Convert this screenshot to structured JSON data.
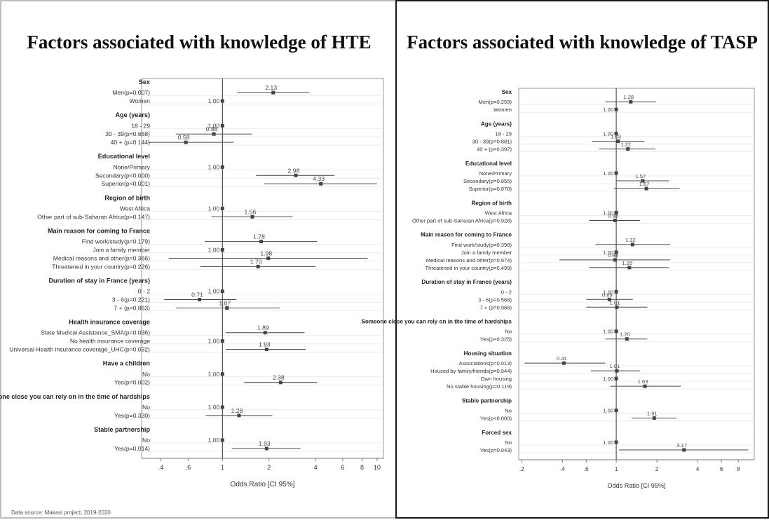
{
  "source_note": "Data source: Makasi project, 2019-2020",
  "chart_data": [
    {
      "type": "forest",
      "title": "Factors associated with knowledge of HTE",
      "xlabel": "Odds Ratio [CI 95%]",
      "x_scale": "log",
      "xlim": [
        0.3,
        11
      ],
      "xticks": [
        ".4",
        ".6",
        "1",
        "2",
        "4",
        "6",
        "8",
        "10"
      ],
      "xtick_values": [
        0.4,
        0.6,
        1,
        2,
        4,
        6,
        8,
        10
      ],
      "reference_line": 1,
      "groups": [
        {
          "label": "Sex",
          "rows": [
            {
              "label": "Men(p=0.007)",
              "or": 2.13,
              "or_label": "2.13",
              "ci": [
                1.25,
                3.65
              ]
            },
            {
              "label": "Women",
              "or": 1.0,
              "or_label": "1.00",
              "ci": null
            }
          ]
        },
        {
          "label": "Age (years)",
          "rows": [
            {
              "label": "18 - 29",
              "or": 1.0,
              "or_label": "1.00",
              "ci": null
            },
            {
              "label": "30 - 39(p=0.668)",
              "or": 0.88,
              "or_label": "0.88",
              "ci": [
                0.5,
                1.55
              ]
            },
            {
              "label": "40  + (p=0.144)",
              "or": 0.58,
              "or_label": "0.58",
              "ci": [
                0.33,
                1.18
              ]
            }
          ]
        },
        {
          "label": "Educational level",
          "rows": [
            {
              "label": "None/Primary",
              "or": 1.0,
              "or_label": "1.00",
              "ci": null
            },
            {
              "label": "Secondary(p<0.000)",
              "or": 2.98,
              "or_label": "2.98",
              "ci": [
                1.65,
                5.3
              ]
            },
            {
              "label": "Superior(p<0.001)",
              "or": 4.33,
              "or_label": "4.33",
              "ci": [
                1.85,
                10.0
              ]
            }
          ]
        },
        {
          "label": "Region of birth",
          "rows": [
            {
              "label": "West Africa",
              "or": 1.0,
              "or_label": "1.00",
              "ci": null
            },
            {
              "label": "Other part of sub-Saharan Africa(p=0.147)",
              "or": 1.56,
              "or_label": "1.56",
              "ci": [
                0.85,
                2.85
              ]
            }
          ]
        },
        {
          "label": "Main reason for coming to France",
          "rows": [
            {
              "label": "Find work/study(p=0.179)",
              "or": 1.78,
              "or_label": "1.78",
              "ci": [
                0.77,
                4.1
              ]
            },
            {
              "label": "Join a family member",
              "or": 1.0,
              "or_label": "1.00",
              "ci": null
            },
            {
              "label": "Medical reasons and other(p=0.366)",
              "or": 1.98,
              "or_label": "1.98",
              "ci": [
                0.45,
                8.7
              ]
            },
            {
              "label": "Threatened in your country(p=0.226)",
              "or": 1.7,
              "or_label": "1.70",
              "ci": [
                0.72,
                4.0
              ]
            }
          ]
        },
        {
          "label": "Duration of stay in France (years)",
          "rows": [
            {
              "label": "0 - 2",
              "or": 1.0,
              "or_label": "1.00",
              "ci": null
            },
            {
              "label": "3 - 6(p=0.221)",
              "or": 0.71,
              "or_label": "0.71",
              "ci": [
                0.42,
                1.23
              ]
            },
            {
              "label": "7 + (p=0.863)",
              "or": 1.07,
              "or_label": "1.07",
              "ci": [
                0.5,
                2.35
              ]
            }
          ]
        },
        {
          "label": "Health insurance coverage",
          "rows": [
            {
              "label": "State Medical Assistance_SMA(p=0.036)",
              "or": 1.89,
              "or_label": "1.89",
              "ci": [
                1.05,
                3.4
              ]
            },
            {
              "label": "No health insurance coverage",
              "or": 1.0,
              "or_label": "1.00",
              "ci": null
            },
            {
              "label": "Universal Health insurance coverage_UHC(p=0.032)",
              "or": 1.93,
              "or_label": "1.93",
              "ci": [
                1.05,
                3.45
              ]
            }
          ]
        },
        {
          "label": "Have a children",
          "rows": [
            {
              "label": "No",
              "or": 1.0,
              "or_label": "1.00",
              "ci": null
            },
            {
              "label": "Yes(p=0.002)",
              "or": 2.38,
              "or_label": "2.38",
              "ci": [
                1.38,
                4.1
              ]
            }
          ]
        },
        {
          "label": "Someone close you can rely on in the time of hardships",
          "rows": [
            {
              "label": "No",
              "or": 1.0,
              "or_label": "1.00",
              "ci": null
            },
            {
              "label": "Yes(p=0.330)",
              "or": 1.28,
              "or_label": "1.28",
              "ci": [
                0.78,
                2.1
              ]
            }
          ]
        },
        {
          "label": "Stable partnership",
          "rows": [
            {
              "label": "No",
              "or": 1.0,
              "or_label": "1.00",
              "ci": null
            },
            {
              "label": "Yes(p=0.014)",
              "or": 1.93,
              "or_label": "1.93",
              "ci": [
                1.15,
                3.2
              ]
            }
          ]
        }
      ]
    },
    {
      "type": "forest",
      "title": "Factors associated with knowledge of TASP",
      "xlabel": "Odds Ratio [CI 95%]",
      "x_scale": "log",
      "xlim": [
        0.19,
        10.5
      ],
      "xticks": [
        ".2",
        ".4",
        ".6",
        "1",
        "2",
        "4",
        "6",
        "8"
      ],
      "xtick_values": [
        0.2,
        0.4,
        0.6,
        1,
        2,
        4,
        6,
        8
      ],
      "reference_line": 1,
      "groups": [
        {
          "label": "Sex",
          "rows": [
            {
              "label": "Men(p=0.259)",
              "or": 1.28,
              "or_label": "1.28",
              "ci": [
                0.83,
                1.97
              ]
            },
            {
              "label": "Women",
              "or": 1.0,
              "or_label": "1.00",
              "ci": null
            }
          ]
        },
        {
          "label": "Age (years)",
          "rows": [
            {
              "label": "18 - 29",
              "or": 1.0,
              "or_label": "1.00",
              "ci": null
            },
            {
              "label": "30 - 39(p=0.881)",
              "or": 1.03,
              "or_label": "1.03",
              "ci": [
                0.66,
                1.62
              ]
            },
            {
              "label": "40  + (p=0.397)",
              "or": 1.22,
              "or_label": "1.22",
              "ci": [
                0.75,
                1.95
              ]
            }
          ]
        },
        {
          "label": "Educational level",
          "rows": [
            {
              "label": "None/Primary",
              "or": 1.0,
              "or_label": "1.00",
              "ci": null
            },
            {
              "label": "Secondary(p=0.055)",
              "or": 1.57,
              "or_label": "1.57",
              "ci": [
                1.0,
                2.45
              ]
            },
            {
              "label": "Superior(p=0.070)",
              "or": 1.67,
              "or_label": "1.67",
              "ci": [
                0.96,
                2.95
              ]
            }
          ]
        },
        {
          "label": "Region of birth",
          "rows": [
            {
              "label": "West Africa",
              "or": 1.0,
              "or_label": "1.00",
              "ci": null
            },
            {
              "label": "Other part of sub-Saharan Africa(p=0.928)",
              "or": 0.98,
              "or_label": "0.98",
              "ci": [
                0.63,
                1.5
              ]
            }
          ]
        },
        {
          "label": "Main reason for coming to France",
          "rows": [
            {
              "label": "Find work/study(p=0.398)",
              "or": 1.32,
              "or_label": "1.32",
              "ci": [
                0.7,
                2.5
              ]
            },
            {
              "label": "Join a family member",
              "or": 1.0,
              "or_label": "1.00",
              "ci": null
            },
            {
              "label": "Medical reasons and other(p=0.974)",
              "or": 0.98,
              "or_label": "0.98",
              "ci": [
                0.38,
                2.5
              ]
            },
            {
              "label": "Threatened in your country(p=0.499)",
              "or": 1.25,
              "or_label": "1.25",
              "ci": [
                0.63,
                2.45
              ]
            }
          ]
        },
        {
          "label": "Duration of stay in France (years)",
          "rows": [
            {
              "label": "0 - 2",
              "or": 1.0,
              "or_label": "1.00",
              "ci": null
            },
            {
              "label": "3 - 6(p=0.568)",
              "or": 0.89,
              "or_label": "0.89",
              "ci": [
                0.6,
                1.33
              ]
            },
            {
              "label": "7 + (p=0.966)",
              "or": 1.01,
              "or_label": "1.01",
              "ci": [
                0.6,
                1.7
              ]
            }
          ]
        },
        {
          "label": "Someone close you can rely on in the time of hardships",
          "rows": [
            {
              "label": "No",
              "or": 1.0,
              "or_label": "1.00",
              "ci": null
            },
            {
              "label": "Yes(p=0.325)",
              "or": 1.2,
              "or_label": "1.20",
              "ci": [
                0.83,
                1.7
              ]
            }
          ]
        },
        {
          "label": "Housing situation",
          "rows": [
            {
              "label": "Associations(p=0.013)",
              "or": 0.41,
              "or_label": "0.41",
              "ci": [
                0.21,
                0.83
              ]
            },
            {
              "label": "Housed by family/friends(p=0.944)",
              "or": 1.01,
              "or_label": "1.01",
              "ci": [
                0.65,
                1.5
              ]
            },
            {
              "label": "Own housing",
              "or": 1.0,
              "or_label": "1.00",
              "ci": null
            },
            {
              "label": "No stable housing(p=0.119)",
              "or": 1.63,
              "or_label": "1.63",
              "ci": [
                0.9,
                3.0
              ]
            }
          ]
        },
        {
          "label": "Stable partnership",
          "rows": [
            {
              "label": "No",
              "or": 1.0,
              "or_label": "1.00",
              "ci": null
            },
            {
              "label": "Yes(p<0.000)",
              "or": 1.91,
              "or_label": "1.91",
              "ci": [
                1.3,
                2.8
              ]
            }
          ]
        },
        {
          "label": "Forced sex",
          "rows": [
            {
              "label": "No",
              "or": 1.0,
              "or_label": "1.00",
              "ci": null
            },
            {
              "label": "Yes(p=0.043)",
              "or": 3.17,
              "or_label": "3.17",
              "ci": [
                1.05,
                9.5
              ]
            }
          ]
        }
      ]
    }
  ]
}
